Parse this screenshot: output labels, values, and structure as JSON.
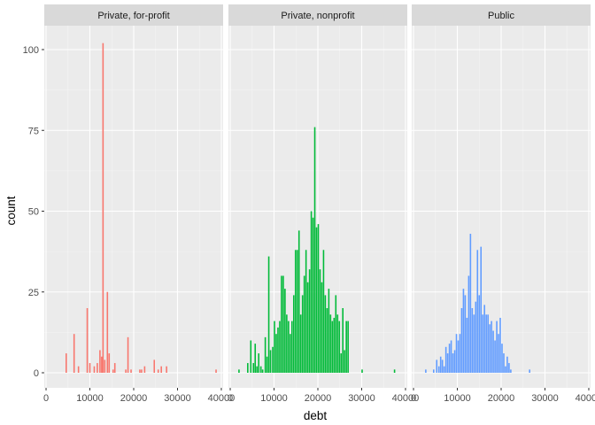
{
  "chart_data": {
    "type": "bar",
    "subtype": "faceted-histogram",
    "xlabel": "debt",
    "ylabel": "count",
    "xlim": [
      0,
      40000
    ],
    "ylim": [
      0,
      102
    ],
    "x_ticks": [
      0,
      10000,
      20000,
      30000,
      40000
    ],
    "x_tick_labels": [
      "0",
      "10000",
      "20000",
      "30000",
      "40000"
    ],
    "y_ticks": [
      0,
      25,
      50,
      75,
      100
    ],
    "y_tick_labels": [
      "0",
      "25",
      "50",
      "75",
      "100"
    ],
    "grid": true,
    "legend": "none",
    "bin_width": 320,
    "panels": [
      {
        "name": "Private, for-profit",
        "color": "#F8766D",
        "bars": [
          {
            "x": 4600,
            "count": 6
          },
          {
            "x": 6400,
            "count": 12
          },
          {
            "x": 7400,
            "count": 2
          },
          {
            "x": 9400,
            "count": 20
          },
          {
            "x": 10000,
            "count": 3
          },
          {
            "x": 11000,
            "count": 2
          },
          {
            "x": 11700,
            "count": 3
          },
          {
            "x": 12300,
            "count": 7
          },
          {
            "x": 12700,
            "count": 5
          },
          {
            "x": 13000,
            "count": 102
          },
          {
            "x": 13400,
            "count": 4
          },
          {
            "x": 14000,
            "count": 25
          },
          {
            "x": 14400,
            "count": 6
          },
          {
            "x": 15300,
            "count": 1
          },
          {
            "x": 15700,
            "count": 3
          },
          {
            "x": 18200,
            "count": 1
          },
          {
            "x": 18700,
            "count": 11
          },
          {
            "x": 19400,
            "count": 1
          },
          {
            "x": 21400,
            "count": 1
          },
          {
            "x": 21800,
            "count": 1
          },
          {
            "x": 22500,
            "count": 2
          },
          {
            "x": 24700,
            "count": 4
          },
          {
            "x": 25600,
            "count": 1
          },
          {
            "x": 26300,
            "count": 2
          },
          {
            "x": 27500,
            "count": 2
          },
          {
            "x": 38800,
            "count": 1
          }
        ]
      },
      {
        "name": "Private, nonprofit",
        "color": "#00BA38",
        "bars": [
          {
            "x": 2000,
            "count": 1
          },
          {
            "x": 4000,
            "count": 3
          },
          {
            "x": 4700,
            "count": 10
          },
          {
            "x": 5300,
            "count": 3
          },
          {
            "x": 5700,
            "count": 9
          },
          {
            "x": 6100,
            "count": 2
          },
          {
            "x": 6500,
            "count": 6
          },
          {
            "x": 7000,
            "count": 2
          },
          {
            "x": 7400,
            "count": 1
          },
          {
            "x": 8000,
            "count": 11
          },
          {
            "x": 8400,
            "count": 5
          },
          {
            "x": 8800,
            "count": 36
          },
          {
            "x": 9200,
            "count": 7
          },
          {
            "x": 9700,
            "count": 8
          },
          {
            "x": 10100,
            "count": 16
          },
          {
            "x": 10500,
            "count": 12
          },
          {
            "x": 10900,
            "count": 14
          },
          {
            "x": 11300,
            "count": 16
          },
          {
            "x": 11700,
            "count": 30
          },
          {
            "x": 12100,
            "count": 30
          },
          {
            "x": 12500,
            "count": 26
          },
          {
            "x": 12900,
            "count": 18
          },
          {
            "x": 13300,
            "count": 16
          },
          {
            "x": 13700,
            "count": 12
          },
          {
            "x": 14100,
            "count": 16
          },
          {
            "x": 14500,
            "count": 24
          },
          {
            "x": 14900,
            "count": 38
          },
          {
            "x": 15300,
            "count": 38
          },
          {
            "x": 15700,
            "count": 44
          },
          {
            "x": 16100,
            "count": 18
          },
          {
            "x": 16500,
            "count": 24
          },
          {
            "x": 16900,
            "count": 30
          },
          {
            "x": 17300,
            "count": 38
          },
          {
            "x": 17700,
            "count": 28
          },
          {
            "x": 18100,
            "count": 32
          },
          {
            "x": 18500,
            "count": 50
          },
          {
            "x": 18900,
            "count": 48
          },
          {
            "x": 19300,
            "count": 76
          },
          {
            "x": 19700,
            "count": 45
          },
          {
            "x": 20100,
            "count": 46
          },
          {
            "x": 20500,
            "count": 32
          },
          {
            "x": 20900,
            "count": 28
          },
          {
            "x": 21300,
            "count": 38
          },
          {
            "x": 21700,
            "count": 24
          },
          {
            "x": 22100,
            "count": 20
          },
          {
            "x": 22500,
            "count": 26
          },
          {
            "x": 22900,
            "count": 18
          },
          {
            "x": 23300,
            "count": 16
          },
          {
            "x": 23700,
            "count": 17
          },
          {
            "x": 24100,
            "count": 24
          },
          {
            "x": 24500,
            "count": 18
          },
          {
            "x": 24900,
            "count": 16
          },
          {
            "x": 25300,
            "count": 6
          },
          {
            "x": 25700,
            "count": 20
          },
          {
            "x": 26100,
            "count": 7
          },
          {
            "x": 26500,
            "count": 16
          },
          {
            "x": 26900,
            "count": 16
          },
          {
            "x": 30100,
            "count": 1
          },
          {
            "x": 37500,
            "count": 1
          }
        ]
      },
      {
        "name": "Public",
        "color": "#619CFF",
        "bars": [
          {
            "x": 2800,
            "count": 1
          },
          {
            "x": 4600,
            "count": 1
          },
          {
            "x": 5300,
            "count": 4
          },
          {
            "x": 5800,
            "count": 2
          },
          {
            "x": 6200,
            "count": 5
          },
          {
            "x": 6600,
            "count": 4
          },
          {
            "x": 7000,
            "count": 2
          },
          {
            "x": 7400,
            "count": 8
          },
          {
            "x": 7800,
            "count": 6
          },
          {
            "x": 8200,
            "count": 9
          },
          {
            "x": 8600,
            "count": 10
          },
          {
            "x": 9000,
            "count": 6
          },
          {
            "x": 9400,
            "count": 7
          },
          {
            "x": 9800,
            "count": 12
          },
          {
            "x": 10200,
            "count": 10
          },
          {
            "x": 10600,
            "count": 12
          },
          {
            "x": 11000,
            "count": 20
          },
          {
            "x": 11400,
            "count": 26
          },
          {
            "x": 11800,
            "count": 24
          },
          {
            "x": 12200,
            "count": 17
          },
          {
            "x": 12600,
            "count": 30
          },
          {
            "x": 13000,
            "count": 43
          },
          {
            "x": 13400,
            "count": 20
          },
          {
            "x": 13800,
            "count": 18
          },
          {
            "x": 14200,
            "count": 22
          },
          {
            "x": 14600,
            "count": 38
          },
          {
            "x": 15000,
            "count": 24
          },
          {
            "x": 15400,
            "count": 39
          },
          {
            "x": 15800,
            "count": 18
          },
          {
            "x": 16200,
            "count": 21
          },
          {
            "x": 16600,
            "count": 18
          },
          {
            "x": 17000,
            "count": 18
          },
          {
            "x": 17400,
            "count": 15
          },
          {
            "x": 17800,
            "count": 16
          },
          {
            "x": 18200,
            "count": 13
          },
          {
            "x": 18600,
            "count": 10
          },
          {
            "x": 19000,
            "count": 16
          },
          {
            "x": 19400,
            "count": 12
          },
          {
            "x": 19800,
            "count": 17
          },
          {
            "x": 20200,
            "count": 9
          },
          {
            "x": 20600,
            "count": 6
          },
          {
            "x": 21000,
            "count": 2
          },
          {
            "x": 21400,
            "count": 5
          },
          {
            "x": 21800,
            "count": 3
          },
          {
            "x": 22200,
            "count": 1
          },
          {
            "x": 26500,
            "count": 1
          }
        ]
      }
    ]
  }
}
